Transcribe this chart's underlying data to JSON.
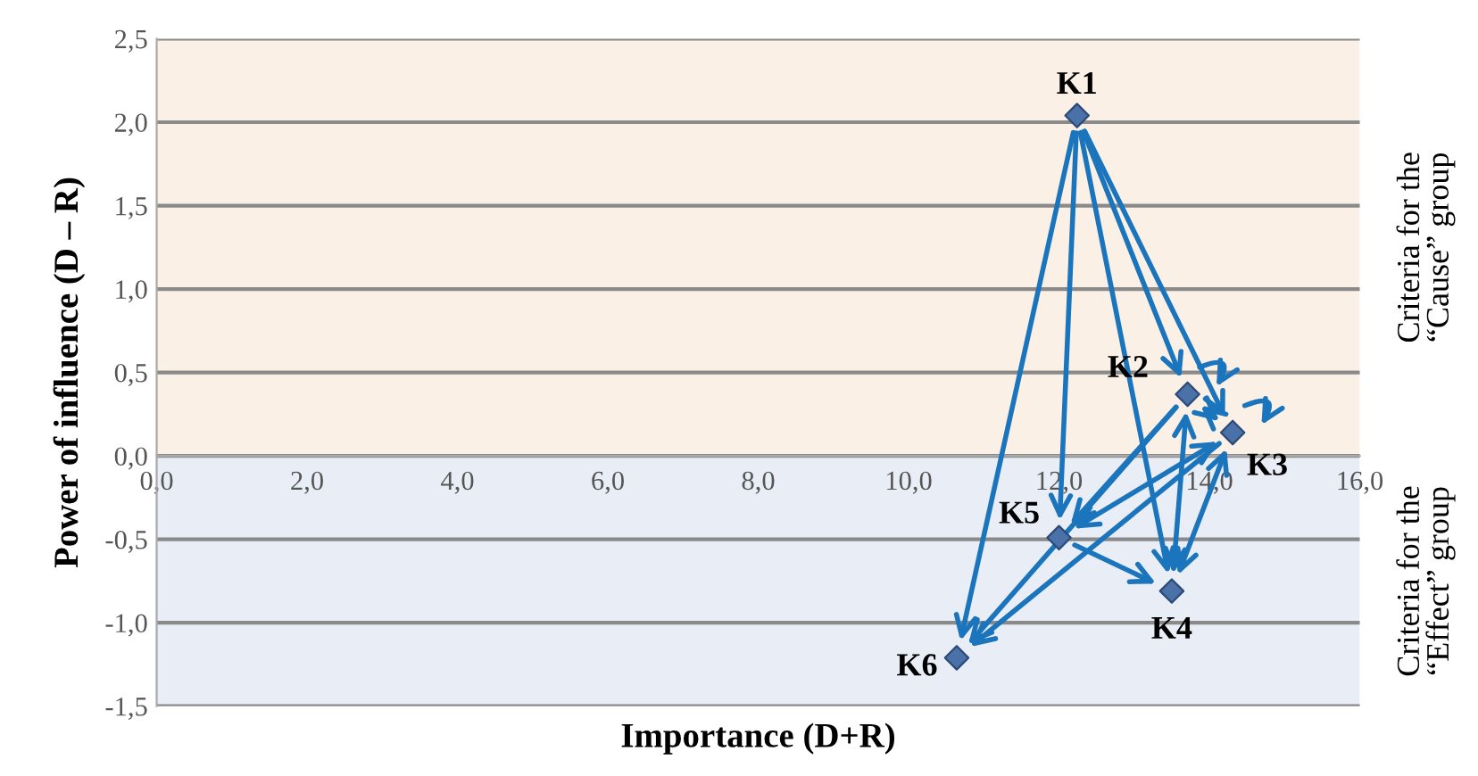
{
  "chart_data": {
    "type": "scatter",
    "xlabel": "Importance (D+R)",
    "ylabel": "Power of influence (D – R)",
    "x": [
      12.24,
      13.71,
      14.31,
      13.5,
      12.0,
      10.64
    ],
    "series": [
      {
        "color": "#4a72a8",
        "values": [
          2.04,
          0.37,
          0.14,
          -0.81,
          -0.49,
          -1.21
        ]
      }
    ],
    "marker": "diamond",
    "annotations": [
      {
        "text": "K1",
        "x": 12.24,
        "y": 2.04
      },
      {
        "text": "K2",
        "x": 13.71,
        "y": 0.37
      },
      {
        "text": "K3",
        "x": 14.31,
        "y": 0.14
      },
      {
        "text": "K4",
        "x": 13.5,
        "y": -0.81
      },
      {
        "text": "K5",
        "x": 12.0,
        "y": -0.49
      },
      {
        "text": "K6",
        "x": 10.64,
        "y": -1.21
      }
    ],
    "bands": [
      {
        "axis": "y",
        "from": 0,
        "to": 2.5,
        "label": "Criteria for the\n“Cause” group",
        "color": "#fbf0e6"
      },
      {
        "axis": "y",
        "from": -1.5,
        "to": 0,
        "label": "Criteria for the\n“Effect” group",
        "color": "#e8edf6"
      }
    ],
    "xlim": [
      0,
      16
    ],
    "ylim": [
      -1.5,
      2.5
    ],
    "xticks": [
      {
        "value": 0,
        "label": "0,0"
      },
      {
        "value": 2,
        "label": "2,0"
      },
      {
        "value": 4,
        "label": "4,0"
      },
      {
        "value": 6,
        "label": "6,0"
      },
      {
        "value": 8,
        "label": "8,0"
      },
      {
        "value": 10,
        "label": "10,0"
      },
      {
        "value": 12,
        "label": "12,0"
      },
      {
        "value": 14,
        "label": "14,0"
      },
      {
        "value": 16,
        "label": "16,0"
      }
    ],
    "yticks": [
      {
        "value": 2.5,
        "label": "2,5"
      },
      {
        "value": 2,
        "label": "2,0"
      },
      {
        "value": 1.5,
        "label": "1,5"
      },
      {
        "value": 1,
        "label": "1,0"
      },
      {
        "value": 0.5,
        "label": "0,5"
      },
      {
        "value": 0,
        "label": "0,0"
      },
      {
        "value": -0.5,
        "label": "-0,5"
      },
      {
        "value": -1,
        "label": "-1,0"
      },
      {
        "value": -1.5,
        "label": "-1,5"
      }
    ],
    "grid": "y"
  }
}
